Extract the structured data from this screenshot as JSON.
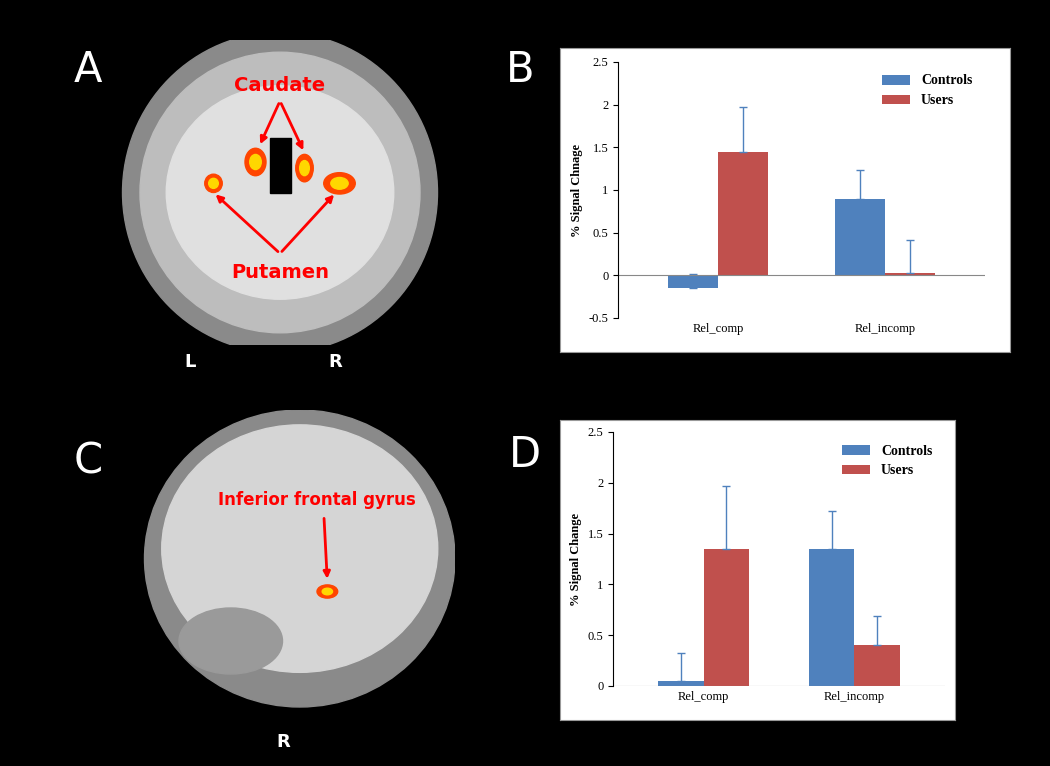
{
  "chart_data": [
    {
      "type": "bar",
      "panel": "B",
      "y_label": "% Signal Chnage",
      "categories": [
        "Rel_comp",
        "Rel_incomp"
      ],
      "series": [
        {
          "name": "Controls",
          "color": "#4f81bd",
          "values": [
            -0.15,
            0.9
          ],
          "errors": [
            0.17,
            0.33
          ]
        },
        {
          "name": "Users",
          "color": "#c0504d",
          "values": [
            1.45,
            0.03
          ],
          "errors": [
            0.52,
            0.38
          ]
        }
      ],
      "ylim": [
        -0.5,
        2.5
      ],
      "yticks": [
        -0.5,
        0,
        0.5,
        1,
        1.5,
        2,
        2.5
      ],
      "legend": "upper right"
    },
    {
      "type": "bar",
      "panel": "D",
      "y_label": "% Signal Change",
      "categories": [
        "Rel_comp",
        "Rel_incomp"
      ],
      "series": [
        {
          "name": "Controls",
          "color": "#4f81bd",
          "values": [
            0.05,
            1.35
          ],
          "errors": [
            0.27,
            0.37
          ]
        },
        {
          "name": "Users",
          "color": "#c0504d",
          "values": [
            1.35,
            0.4
          ],
          "errors": [
            0.62,
            0.29
          ]
        }
      ],
      "ylim": [
        0,
        2.5
      ],
      "yticks": [
        0,
        0.5,
        1,
        1.5,
        2,
        2.5
      ],
      "legend": "upper right"
    }
  ],
  "images": [
    {
      "panel": "A",
      "annotations": [
        "Caudate",
        "Putamen"
      ],
      "sides": [
        "L",
        "R"
      ]
    },
    {
      "panel": "C",
      "annotations": [
        "Inferior frontal gyrus"
      ],
      "sides": [
        "R"
      ]
    }
  ]
}
